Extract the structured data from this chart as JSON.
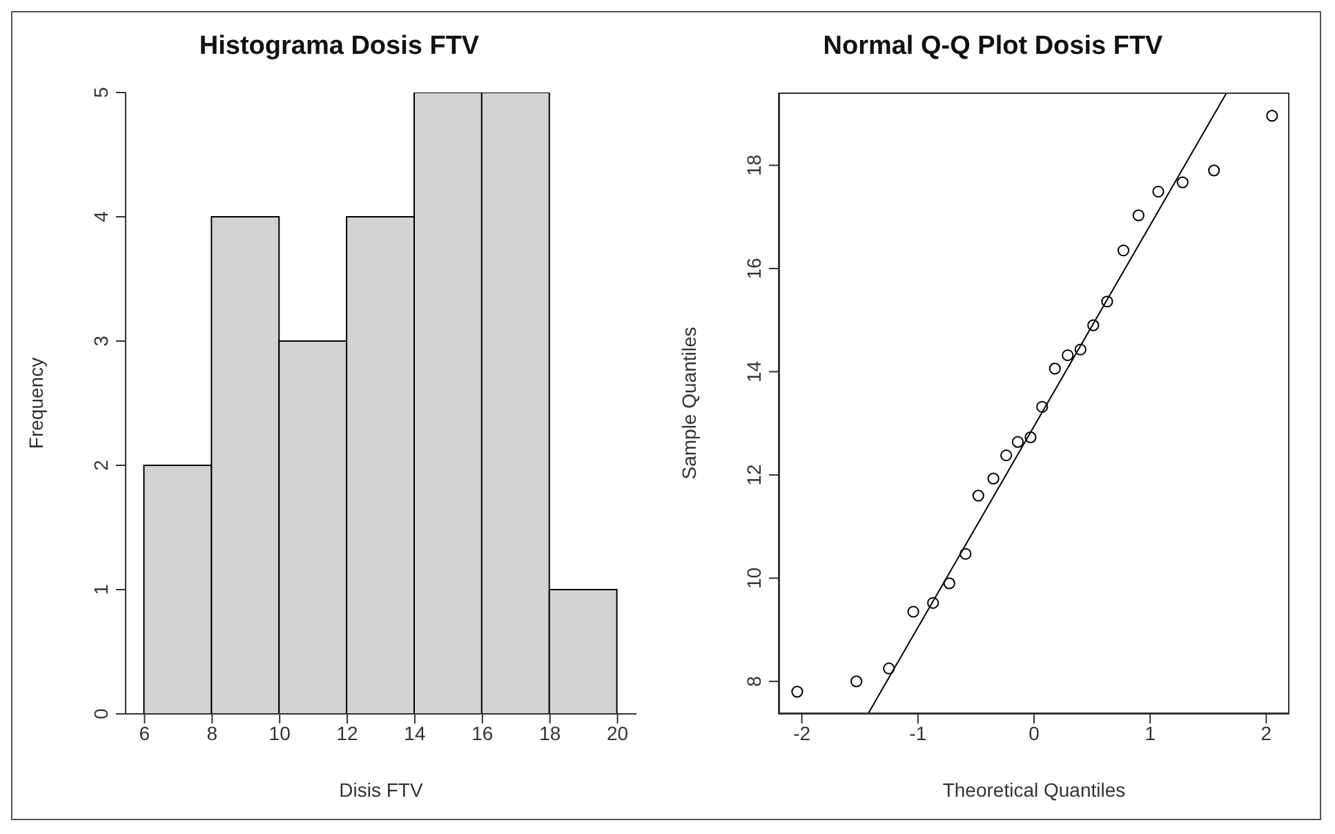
{
  "chart_data": [
    {
      "type": "histogram",
      "title": "Histograma Dosis FTV",
      "xlabel": "Disis FTV",
      "ylabel": "Frequency",
      "bins": [
        6,
        8,
        10,
        12,
        14,
        16,
        18,
        20
      ],
      "values": [
        2,
        4,
        3,
        4,
        5,
        5,
        1
      ],
      "color": "#d3d3d3",
      "xlim": [
        5.44,
        20.56
      ],
      "xticks": [
        6,
        8,
        10,
        12,
        14,
        16,
        18,
        20
      ],
      "ylim": [
        0,
        5
      ],
      "yticks": [
        0,
        1,
        2,
        3,
        4,
        5
      ]
    },
    {
      "type": "scatter",
      "title": "Normal Q-Q Plot Dosis FTV",
      "xlabel": "Theoretical Quantiles",
      "ylabel": "Sample Quantiles",
      "xlim": [
        -2.2,
        2.2
      ],
      "xticks": [
        -2,
        -1,
        0,
        1,
        2
      ],
      "ylim": [
        7.37,
        19.41
      ],
      "yticks": [
        8,
        10,
        12,
        14,
        16,
        18
      ],
      "series": [
        {
          "color": "#000000",
          "marker": "circle",
          "x": [
            -2.04,
            -1.53,
            -1.25,
            -1.04,
            -0.87,
            -0.73,
            -0.59,
            -0.48,
            -0.35,
            -0.24,
            -0.14,
            -0.03,
            0.07,
            0.18,
            0.29,
            0.4,
            0.51,
            0.63,
            0.77,
            0.9,
            1.07,
            1.28,
            1.55,
            2.05
          ],
          "values": [
            7.8,
            8.0,
            8.25,
            9.35,
            9.52,
            9.9,
            10.47,
            11.6,
            11.93,
            12.38,
            12.64,
            12.73,
            13.32,
            14.06,
            14.32,
            14.43,
            14.9,
            15.36,
            16.35,
            17.03,
            17.49,
            17.67,
            17.9,
            18.96
          ]
        },
        {
          "type": "line",
          "color": "#000000",
          "marker": "none",
          "x": [
            -1.43,
            1.66
          ],
          "values": [
            7.37,
            19.41
          ]
        }
      ]
    }
  ]
}
